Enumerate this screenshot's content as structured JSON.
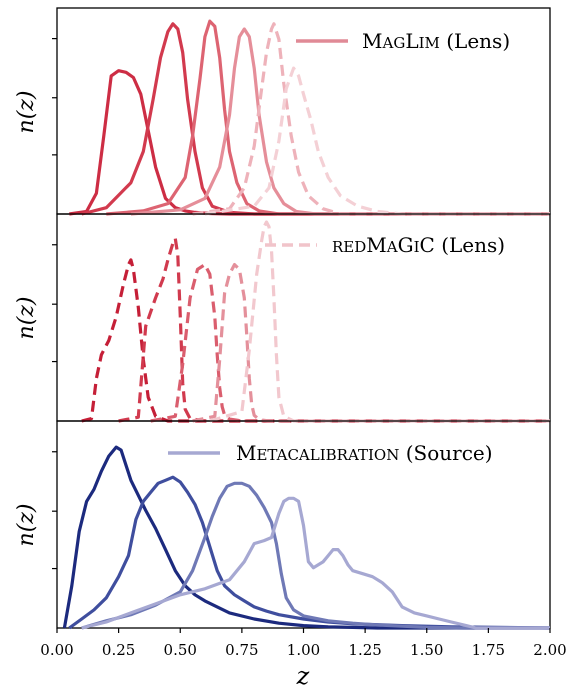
{
  "chart_data": {
    "type": "line",
    "xlabel": "z",
    "ylabel": "n(z)",
    "xlim": [
      0.0,
      2.0
    ],
    "xticks": [
      "0.00",
      "0.25",
      "0.50",
      "0.75",
      "1.00",
      "1.25",
      "1.50",
      "1.75",
      "2.00"
    ],
    "panels": [
      {
        "id": "maglim",
        "legend": "MagLim (Lens)",
        "legend_style": "solid",
        "legend_color": "#e08a96",
        "ylim": [
          0,
          3.8
        ],
        "series": [
          {
            "color": "#cd2d44",
            "dash": false,
            "x": [
              0.05,
              0.12,
              0.16,
              0.19,
              0.22,
              0.25,
              0.28,
              0.31,
              0.34,
              0.37,
              0.4,
              0.44,
              0.48,
              0.52,
              0.56,
              0.62,
              0.7,
              0.8,
              1.0,
              2.0
            ],
            "y": [
              0,
              0.05,
              0.4,
              1.5,
              2.65,
              2.75,
              2.72,
              2.62,
              2.3,
              1.6,
              0.9,
              0.3,
              0.12,
              0.06,
              0.03,
              0.01,
              0,
              0,
              0,
              0
            ]
          },
          {
            "color": "#d23a4e",
            "dash": false,
            "x": [
              0.1,
              0.2,
              0.3,
              0.35,
              0.39,
              0.42,
              0.45,
              0.47,
              0.49,
              0.51,
              0.53,
              0.56,
              0.59,
              0.63,
              0.7,
              0.8,
              2.0
            ],
            "y": [
              0,
              0.12,
              0.6,
              1.2,
              2.2,
              3.0,
              3.5,
              3.65,
              3.55,
              3.1,
              2.2,
              1.2,
              0.5,
              0.15,
              0.03,
              0,
              0
            ]
          },
          {
            "color": "#dd6472",
            "dash": false,
            "x": [
              0.2,
              0.35,
              0.45,
              0.52,
              0.55,
              0.58,
              0.6,
              0.62,
              0.64,
              0.66,
              0.68,
              0.7,
              0.73,
              0.77,
              0.82,
              0.9,
              2.0
            ],
            "y": [
              0,
              0.06,
              0.2,
              0.7,
              1.5,
              2.6,
              3.4,
              3.7,
              3.6,
              3.0,
              2.0,
              1.2,
              0.6,
              0.2,
              0.06,
              0,
              0
            ]
          },
          {
            "color": "#e58e99",
            "dash": false,
            "x": [
              0.3,
              0.5,
              0.6,
              0.66,
              0.7,
              0.72,
              0.74,
              0.76,
              0.78,
              0.8,
              0.82,
              0.85,
              0.88,
              0.92,
              0.97,
              1.05,
              2.0
            ],
            "y": [
              0,
              0.08,
              0.3,
              0.9,
              1.9,
              2.8,
              3.4,
              3.55,
              3.4,
              2.8,
              1.9,
              1.0,
              0.5,
              0.2,
              0.05,
              0,
              0
            ]
          },
          {
            "color": "#eeb2ba",
            "dash": true,
            "x": [
              0.55,
              0.7,
              0.76,
              0.8,
              0.83,
              0.85,
              0.87,
              0.88,
              0.9,
              0.92,
              0.95,
              0.98,
              1.02,
              1.08,
              1.15,
              2.0
            ],
            "y": [
              0,
              0.1,
              0.5,
              1.3,
              2.4,
              3.1,
              3.55,
              3.65,
              3.35,
              2.5,
              1.5,
              0.8,
              0.35,
              0.1,
              0,
              0
            ]
          },
          {
            "color": "#f4d0d5",
            "dash": true,
            "x": [
              0.6,
              0.8,
              0.86,
              0.9,
              0.93,
              0.96,
              0.98,
              1.0,
              1.03,
              1.06,
              1.1,
              1.15,
              1.22,
              1.3,
              1.4,
              2.0
            ],
            "y": [
              0,
              0.15,
              0.5,
              1.4,
              2.4,
              2.8,
              2.65,
              2.3,
              1.8,
              1.2,
              0.7,
              0.35,
              0.15,
              0.05,
              0,
              0
            ]
          }
        ]
      },
      {
        "id": "redmagic",
        "legend": "redMaGiC (Lens)",
        "legend_style": "dashed",
        "legend_color": "#f1c4ca",
        "ylim": [
          0,
          4.2
        ],
        "series": [
          {
            "color": "#c51f37",
            "dash": true,
            "x": [
              0.1,
              0.14,
              0.16,
              0.18,
              0.21,
              0.24,
              0.27,
              0.29,
              0.3,
              0.31,
              0.33,
              0.35,
              0.37,
              0.4,
              0.45,
              2.0
            ],
            "y": [
              0,
              0.05,
              0.9,
              1.4,
              1.7,
              2.2,
              2.9,
              3.3,
              3.4,
              3.2,
              2.4,
              1.3,
              0.5,
              0.1,
              0,
              0
            ]
          },
          {
            "color": "#d13a4e",
            "dash": true,
            "x": [
              0.25,
              0.33,
              0.36,
              0.4,
              0.43,
              0.45,
              0.47,
              0.48,
              0.49,
              0.5,
              0.51,
              0.52,
              0.54,
              0.6,
              2.0
            ],
            "y": [
              0,
              0.08,
              2.0,
              2.6,
              3.0,
              3.4,
              3.75,
              3.85,
              3.5,
              2.2,
              0.8,
              0.25,
              0.05,
              0,
              0
            ]
          },
          {
            "color": "#da5e6e",
            "dash": true,
            "x": [
              0.38,
              0.48,
              0.51,
              0.54,
              0.57,
              0.6,
              0.62,
              0.64,
              0.65,
              0.66,
              0.67,
              0.68,
              0.7,
              0.75,
              2.0
            ],
            "y": [
              0,
              0.1,
              1.2,
              2.6,
              3.2,
              3.3,
              3.1,
              2.2,
              1.4,
              0.7,
              0.3,
              0.12,
              0.04,
              0,
              0
            ]
          },
          {
            "color": "#e4909b",
            "dash": true,
            "x": [
              0.55,
              0.64,
              0.66,
              0.68,
              0.7,
              0.72,
              0.74,
              0.76,
              0.77,
              0.78,
              0.79,
              0.8,
              0.82,
              0.86,
              2.0
            ],
            "y": [
              0,
              0.1,
              1.3,
              2.7,
              3.1,
              3.3,
              3.2,
              2.6,
              1.8,
              0.9,
              0.35,
              0.12,
              0.03,
              0,
              0
            ]
          },
          {
            "color": "#f2c8ce",
            "dash": true,
            "x": [
              0.62,
              0.75,
              0.78,
              0.81,
              0.83,
              0.84,
              0.85,
              0.86,
              0.87,
              0.88,
              0.89,
              0.9,
              0.92,
              0.96,
              2.0
            ],
            "y": [
              0,
              0.2,
              1.5,
              3.1,
              3.8,
              4.1,
              4.2,
              4.1,
              3.6,
              2.6,
              1.4,
              0.5,
              0.1,
              0,
              0
            ]
          }
        ]
      },
      {
        "id": "metacal",
        "legend": "Metacalibration (Source)",
        "legend_style": "solid",
        "legend_color": "#a6a8d2",
        "ylim": [
          0,
          3.3
        ],
        "series": [
          {
            "color": "#1c2a7e",
            "dash": false,
            "x": [
              0.03,
              0.06,
              0.09,
              0.12,
              0.15,
              0.18,
              0.21,
              0.24,
              0.26,
              0.28,
              0.3,
              0.33,
              0.36,
              0.4,
              0.44,
              0.48,
              0.52,
              0.56,
              0.6,
              0.65,
              0.7,
              0.8,
              0.9,
              1.0,
              1.1,
              1.2,
              1.3,
              1.4,
              2.0
            ],
            "y": [
              0,
              0.7,
              1.6,
              2.1,
              2.3,
              2.6,
              2.85,
              3.0,
              2.95,
              2.7,
              2.45,
              2.2,
              1.95,
              1.65,
              1.3,
              0.95,
              0.7,
              0.55,
              0.45,
              0.35,
              0.25,
              0.15,
              0.08,
              0.04,
              0.02,
              0.01,
              0,
              0,
              0
            ]
          },
          {
            "color": "#3f4e9e",
            "dash": false,
            "x": [
              0.05,
              0.1,
              0.15,
              0.2,
              0.25,
              0.29,
              0.32,
              0.35,
              0.38,
              0.41,
              0.44,
              0.47,
              0.5,
              0.53,
              0.56,
              0.59,
              0.62,
              0.65,
              0.68,
              0.72,
              0.76,
              0.8,
              0.85,
              0.9,
              1.0,
              1.1,
              1.2,
              1.4,
              1.6,
              2.0
            ],
            "y": [
              0,
              0.15,
              0.3,
              0.5,
              0.85,
              1.2,
              1.8,
              2.1,
              2.25,
              2.4,
              2.45,
              2.5,
              2.42,
              2.25,
              2.05,
              1.75,
              1.35,
              0.95,
              0.7,
              0.55,
              0.45,
              0.35,
              0.28,
              0.22,
              0.15,
              0.1,
              0.07,
              0.04,
              0.02,
              0
            ]
          },
          {
            "color": "#6f79b6",
            "dash": false,
            "x": [
              0.1,
              0.2,
              0.3,
              0.4,
              0.5,
              0.55,
              0.6,
              0.63,
              0.66,
              0.69,
              0.72,
              0.75,
              0.78,
              0.81,
              0.84,
              0.87,
              0.89,
              0.91,
              0.93,
              0.96,
              1.0,
              1.1,
              1.2,
              1.3,
              1.4,
              1.5,
              1.65,
              2.0
            ],
            "y": [
              0,
              0.12,
              0.22,
              0.38,
              0.6,
              0.95,
              1.5,
              1.85,
              2.15,
              2.35,
              2.4,
              2.4,
              2.35,
              2.2,
              2.0,
              1.75,
              1.4,
              0.9,
              0.5,
              0.3,
              0.2,
              0.12,
              0.08,
              0.05,
              0.03,
              0.01,
              0,
              0
            ]
          },
          {
            "color": "#a6a8d2",
            "dash": false,
            "x": [
              0.1,
              0.2,
              0.3,
              0.4,
              0.5,
              0.6,
              0.7,
              0.76,
              0.8,
              0.84,
              0.87,
              0.9,
              0.92,
              0.94,
              0.96,
              0.98,
              1.0,
              1.02,
              1.04,
              1.06,
              1.08,
              1.1,
              1.12,
              1.14,
              1.16,
              1.18,
              1.2,
              1.24,
              1.28,
              1.32,
              1.36,
              1.4,
              1.45,
              1.5,
              1.55,
              1.6,
              1.66,
              1.7,
              2.0
            ],
            "y": [
              0,
              0.1,
              0.25,
              0.4,
              0.55,
              0.65,
              0.8,
              1.1,
              1.4,
              1.45,
              1.5,
              1.9,
              2.1,
              2.15,
              2.15,
              2.1,
              1.7,
              1.1,
              1.0,
              1.05,
              1.1,
              1.2,
              1.3,
              1.3,
              1.2,
              1.05,
              0.95,
              0.9,
              0.85,
              0.75,
              0.6,
              0.35,
              0.25,
              0.2,
              0.15,
              0.1,
              0.04,
              0,
              0
            ]
          }
        ]
      }
    ]
  }
}
